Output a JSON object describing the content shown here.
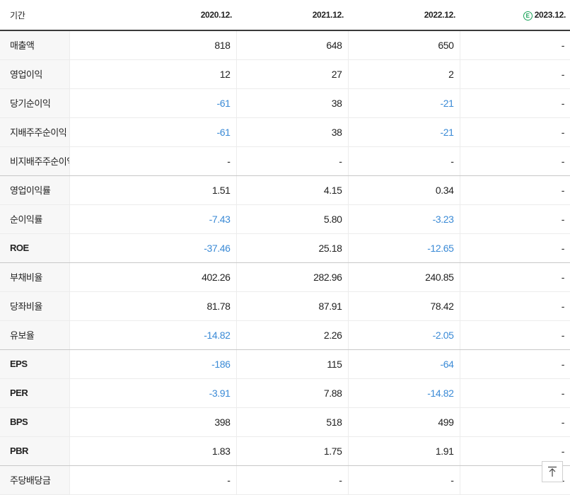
{
  "header": {
    "label": "기간",
    "periods": [
      "2020.12.",
      "2021.12.",
      "2022.12.",
      "2023.12."
    ],
    "estimate_mark": "E"
  },
  "rows": [
    {
      "label": "매출액",
      "values": [
        "818",
        "648",
        "650",
        "-"
      ]
    },
    {
      "label": "영업이익",
      "values": [
        "12",
        "27",
        "2",
        "-"
      ]
    },
    {
      "label": "당기순이익",
      "values": [
        "-61",
        "38",
        "-21",
        "-"
      ]
    },
    {
      "label": "지배주주순이익",
      "values": [
        "-61",
        "38",
        "-21",
        "-"
      ]
    },
    {
      "label": "비지배주주순이익",
      "values": [
        "-",
        "-",
        "-",
        "-"
      ]
    },
    {
      "label": "영업이익률",
      "values": [
        "1.51",
        "4.15",
        "0.34",
        "-"
      ]
    },
    {
      "label": "순이익률",
      "values": [
        "-7.43",
        "5.80",
        "-3.23",
        "-"
      ]
    },
    {
      "label": "ROE",
      "values": [
        "-37.46",
        "25.18",
        "-12.65",
        "-"
      ]
    },
    {
      "label": "부채비율",
      "values": [
        "402.26",
        "282.96",
        "240.85",
        "-"
      ]
    },
    {
      "label": "당좌비율",
      "values": [
        "81.78",
        "87.91",
        "78.42",
        "-"
      ]
    },
    {
      "label": "유보율",
      "values": [
        "-14.82",
        "2.26",
        "-2.05",
        "-"
      ]
    },
    {
      "label": "EPS",
      "values": [
        "-186",
        "115",
        "-64",
        "-"
      ]
    },
    {
      "label": "PER",
      "values": [
        "-3.91",
        "7.88",
        "-14.82",
        "-"
      ]
    },
    {
      "label": "BPS",
      "values": [
        "398",
        "518",
        "499",
        "-"
      ]
    },
    {
      "label": "PBR",
      "values": [
        "1.83",
        "1.75",
        "1.91",
        "-"
      ]
    },
    {
      "label": "주당배당금",
      "values": [
        "-",
        "-",
        "-",
        "-"
      ]
    }
  ],
  "colors": {
    "negative": "#3a8ad6",
    "estimate_mark": "#1aa35a",
    "label_background": "#f7f7f7"
  }
}
